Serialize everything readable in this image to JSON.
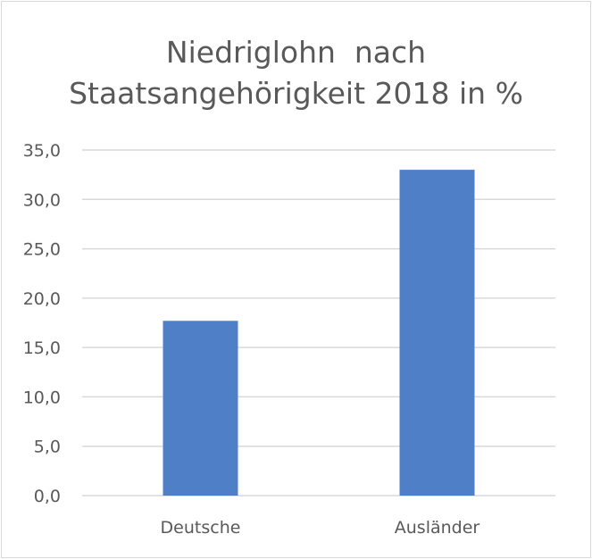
{
  "chart_data": {
    "type": "bar",
    "title_lines": [
      "Niedriglohn  nach",
      "Staatsangehörigkeit 2018 in %"
    ],
    "categories": [
      "Deutsche",
      "Ausländer"
    ],
    "values": [
      17.7,
      33.0
    ],
    "ylim": [
      0,
      35
    ],
    "ytick_step": 5,
    "ytick_labels": [
      "0,0",
      "5,0",
      "10,0",
      "15,0",
      "20,0",
      "25,0",
      "30,0",
      "35,0"
    ],
    "grid": true,
    "legend": "none",
    "bar_color": "#4f7fc7",
    "grid_color": "#d9d9d9"
  }
}
